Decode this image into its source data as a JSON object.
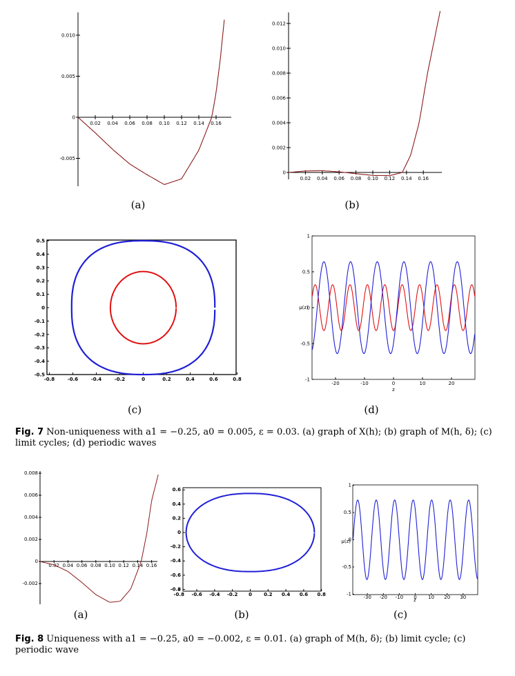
{
  "fig7": {
    "caption_label": "Fig. 7",
    "caption_text": "Non-uniqueness with a1 = −0.25, a0 = 0.005, ε = 0.03. (a) graph of X(h); (b) graph of M(h, δ); (c) limit cycles; (d) periodic waves",
    "subfig_labels": [
      "(a)",
      "(b)",
      "(c)",
      "(d)"
    ],
    "panel_a": {
      "x_ticks": [
        "0.02",
        "0.04",
        "0.06",
        "0.08",
        "0.10",
        "0.12",
        "0.14",
        "0.16"
      ],
      "y_ticks": [
        "-0.005",
        "0",
        "0.005",
        "0.010"
      ],
      "curve_color": "#8b1a1a"
    },
    "panel_b": {
      "x_ticks": [
        "0.02",
        "0.04",
        "0.06",
        "0.08",
        "0.10",
        "0.12",
        "0.14",
        "0.16"
      ],
      "y_ticks": [
        "0",
        "0.002",
        "0.004",
        "0.006",
        "0.008",
        "0.010",
        "0.012"
      ],
      "curve_color": "#8b1a1a"
    },
    "panel_c": {
      "x_ticks": [
        "-0.8",
        "-0.6",
        "-0.4",
        "-0.2",
        "0",
        "0.2",
        "0.4",
        "0.6",
        "0.8"
      ],
      "y_ticks": [
        "-0.5",
        "-0.4",
        "-0.3",
        "-0.2",
        "-0.1",
        "0",
        "0.1",
        "0.2",
        "0.3",
        "0.4",
        "0.5"
      ],
      "outer_color": "#1f1fd6",
      "inner_color": "#e01010"
    },
    "panel_d": {
      "x_ticks": [
        "-20",
        "-10",
        "0",
        "10",
        "20"
      ],
      "y_ticks": [
        "-1",
        "-0.5",
        "0",
        "0.5",
        "1"
      ],
      "ylabel": "μ(z)",
      "xlabel": "z",
      "blue_color": "#1f1fd6",
      "red_color": "#e01010"
    }
  },
  "fig8": {
    "caption_label": "Fig. 8",
    "caption_text": "Uniqueness with a1 = −0.25, a0 = −0.002, ε = 0.01. (a) graph of M(h, δ); (b) limit cycle; (c) periodic wave",
    "subfig_labels": [
      "(a)",
      "(b)",
      "(c)"
    ],
    "panel_a": {
      "x_ticks": [
        "0.02",
        "0.04",
        "0.06",
        "0.08",
        "0.10",
        "0.12",
        "0.14",
        "0.16"
      ],
      "y_ticks": [
        "-0.002",
        "0",
        "0.002",
        "0.004",
        "0.006",
        "0.008"
      ],
      "curve_color": "#8b1a1a"
    },
    "panel_b": {
      "x_ticks": [
        "-0.8",
        "-0.6",
        "-0.4",
        "-0.2",
        "0",
        "0.2",
        "0.4",
        "0.6",
        "0.8"
      ],
      "y_ticks": [
        "-0.8",
        "-0.6",
        "-0.4",
        "-0.2",
        "0",
        "0.2",
        "0.4",
        "0.6"
      ],
      "curve_color": "#1f1fd6"
    },
    "panel_c": {
      "x_ticks": [
        "-30",
        "-20",
        "-10",
        "0",
        "10",
        "20",
        "30"
      ],
      "y_ticks": [
        "-1",
        "-0.5",
        "0",
        "0.5",
        "1"
      ],
      "ylabel": "μ(z)",
      "xlabel": "z",
      "curve_color": "#1f1fd6"
    }
  }
}
